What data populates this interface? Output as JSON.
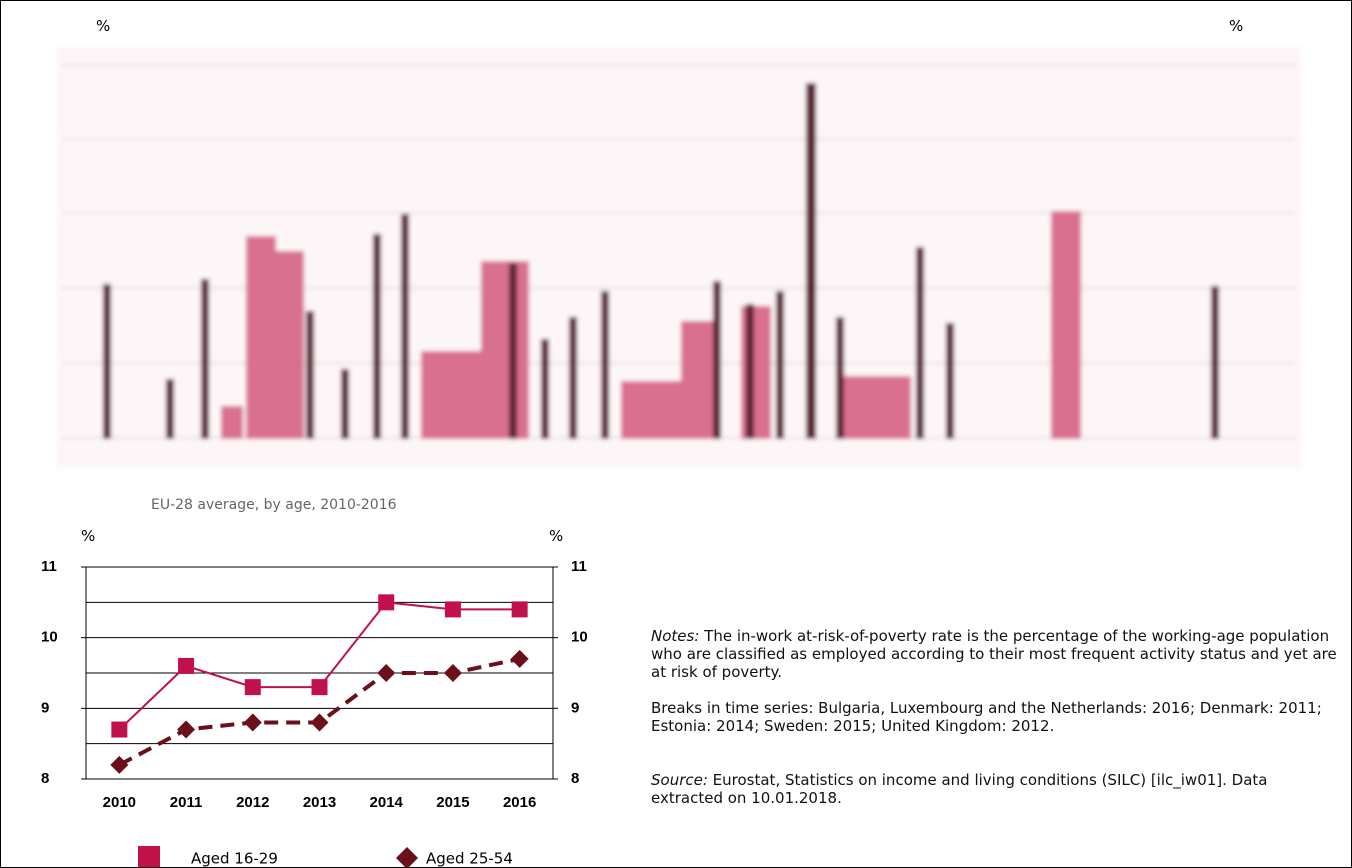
{
  "top_chart": {
    "y_label_left": "%",
    "y_label_right": "%"
  },
  "chart_data": {
    "type": "line",
    "subtitle": "EU-28 average, by age, 2010-2016",
    "y_label": "%",
    "y2_label": "%",
    "categories": [
      "2010",
      "2011",
      "2012",
      "2013",
      "2014",
      "2015",
      "2016"
    ],
    "series": [
      {
        "name": "Aged 16-29",
        "color": "#c0114a",
        "marker": "square",
        "dashed": false,
        "values": [
          8.7,
          9.6,
          9.3,
          9.3,
          10.5,
          10.4,
          10.4
        ]
      },
      {
        "name": "Aged 25-54",
        "color": "#6b0f1a",
        "marker": "diamond",
        "dashed": true,
        "values": [
          8.2,
          8.7,
          8.8,
          8.8,
          9.5,
          9.5,
          9.7
        ]
      }
    ],
    "ylim": [
      8,
      11
    ],
    "yticks": [
      8,
      9,
      10,
      11
    ],
    "y2lim": [
      8,
      11
    ],
    "y2ticks": [
      8,
      9,
      10,
      11
    ],
    "grid": true
  },
  "notes": {
    "label": "Notes:",
    "text": " The in-work at-risk-of-poverty rate is the percentage of the working-age population who are classified as employed according to their most frequent activity status and yet are at risk of poverty.",
    "breaks": "Breaks in time series: Bulgaria, Luxembourg and the Netherlands: 2016; Denmark: 2011; Estonia: 2014; Sweden: 2015; United Kingdom: 2012.",
    "source_label": "Source:",
    "source_text": " Eurostat, Statistics on income and living conditions (SILC) [ilc_iw01]. Data extracted on 10.01.2018."
  }
}
